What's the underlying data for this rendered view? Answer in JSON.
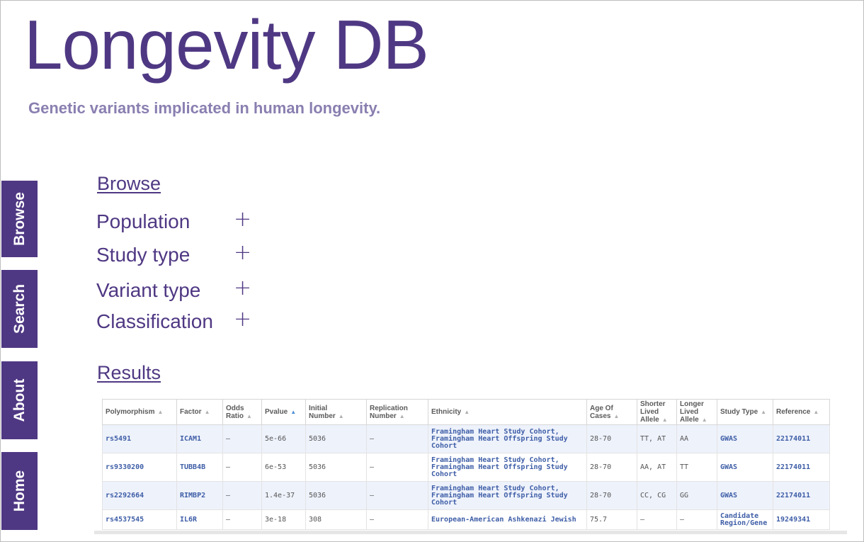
{
  "header": {
    "title": "Longevity DB",
    "subtitle": "Genetic variants implicated in human longevity."
  },
  "sidebar": {
    "tabs": [
      {
        "label": "Browse"
      },
      {
        "label": "Search"
      },
      {
        "label": "About"
      },
      {
        "label": "Home"
      }
    ]
  },
  "browse": {
    "heading": "Browse",
    "filters": [
      {
        "label": "Population",
        "expander": "+"
      },
      {
        "label": "Study type",
        "expander": "+"
      },
      {
        "label": "Variant type",
        "expander": "+"
      },
      {
        "label": "Classification",
        "expander": "+"
      }
    ]
  },
  "results": {
    "heading": "Results",
    "sort_icon": "▲",
    "columns": [
      "Polymorphism",
      "Factor",
      "Odds Ratio",
      "Pvalue",
      "Initial Number",
      "Replication Number",
      "Ethnicity",
      "Age Of Cases",
      "Shorter Lived Allele",
      "Longer Lived Allele",
      "Study Type",
      "Reference"
    ],
    "rows": [
      {
        "polymorphism": "rs5491",
        "factor": "ICAM1",
        "odds_ratio": "—",
        "pvalue": "5e-66",
        "initial_number": "5036",
        "replication_number": "—",
        "ethnicity": "Framingham Heart Study Cohort, Framingham Heart Offspring Study Cohort",
        "age_of_cases": "28-70",
        "shorter_allele": "TT, AT",
        "longer_allele": "AA",
        "study_type": "GWAS",
        "reference": "22174011"
      },
      {
        "polymorphism": "rs9330200",
        "factor": "TUBB4B",
        "odds_ratio": "—",
        "pvalue": "6e-53",
        "initial_number": "5036",
        "replication_number": "—",
        "ethnicity": "Framingham Heart Study Cohort, Framingham Heart Offspring Study Cohort",
        "age_of_cases": "28-70",
        "shorter_allele": "AA, AT",
        "longer_allele": "TT",
        "study_type": "GWAS",
        "reference": "22174011"
      },
      {
        "polymorphism": "rs2292664",
        "factor": "RIMBP2",
        "odds_ratio": "—",
        "pvalue": "1.4e-37",
        "initial_number": "5036",
        "replication_number": "—",
        "ethnicity": "Framingham Heart Study Cohort, Framingham Heart Offspring Study Cohort",
        "age_of_cases": "28-70",
        "shorter_allele": "CC, CG",
        "longer_allele": "GG",
        "study_type": "GWAS",
        "reference": "22174011"
      },
      {
        "polymorphism": "rs4537545",
        "factor": "IL6R",
        "odds_ratio": "—",
        "pvalue": "3e-18",
        "initial_number": "308",
        "replication_number": "—",
        "ethnicity": "European-American Ashkenazi Jewish",
        "age_of_cases": "75.7",
        "shorter_allele": "—",
        "longer_allele": "—",
        "study_type": "Candidate Region/Gene",
        "reference": "19249341"
      }
    ]
  },
  "colors": {
    "brand_purple": "#4f3883",
    "subtitle_lavender": "#8a7fb0",
    "link_blue": "#3e5ea7",
    "row_stripe": "#eef2fb",
    "sort_active": "#4c8fd6"
  }
}
